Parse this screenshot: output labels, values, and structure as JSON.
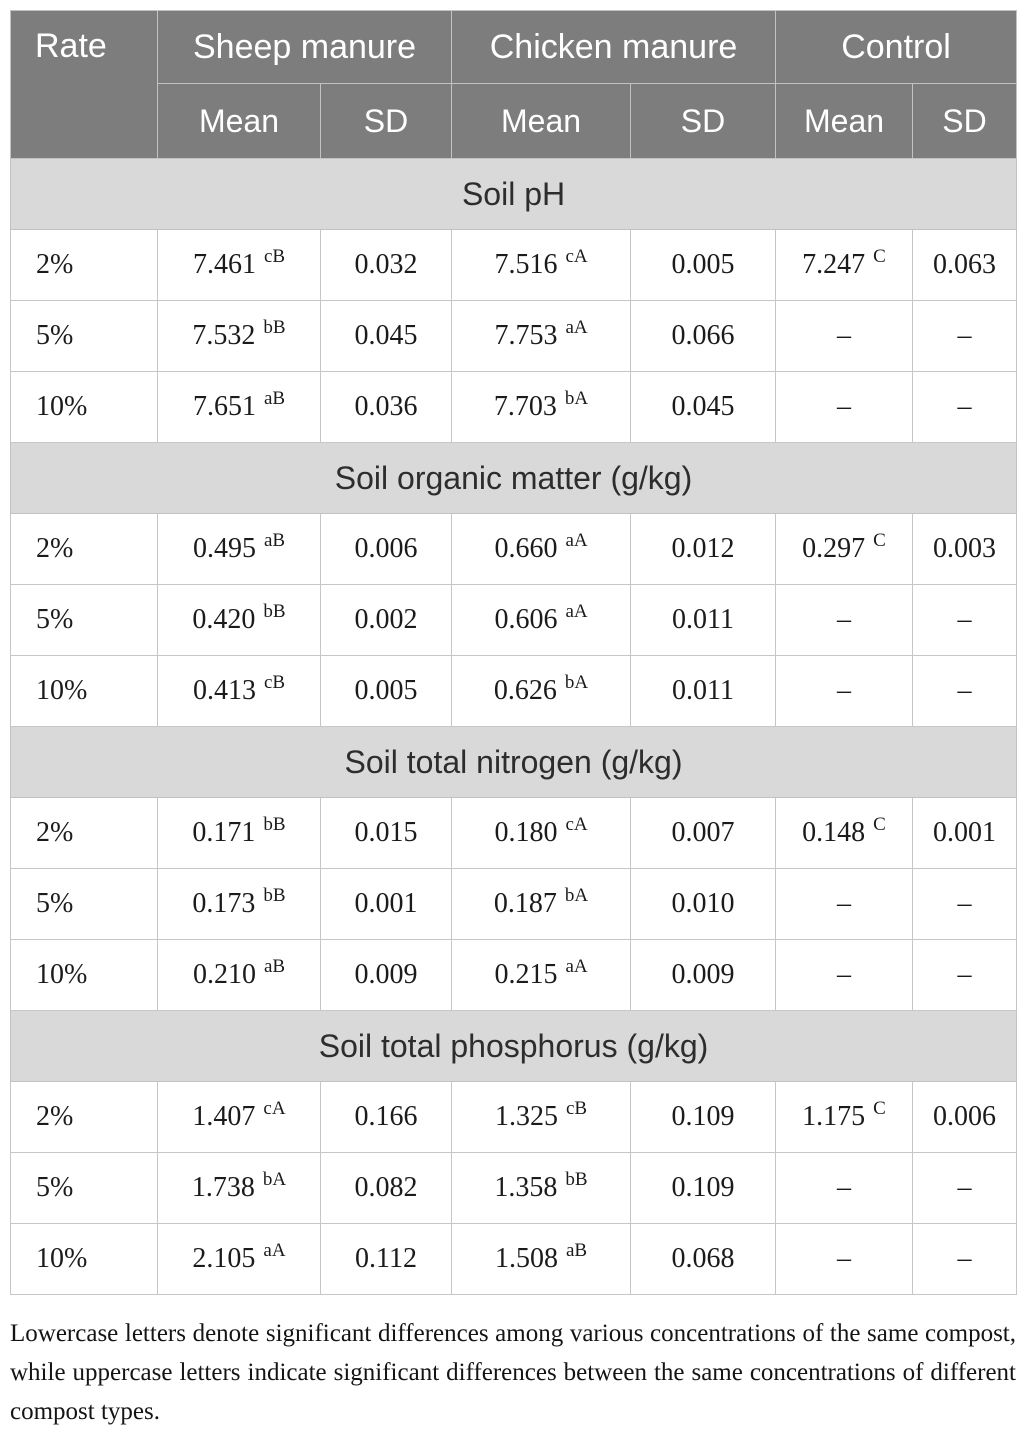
{
  "colors": {
    "header_background": "#7d7d7d",
    "header_text": "#ffffff",
    "section_band_background": "#d9d9d9",
    "cell_background": "#ffffff",
    "border": "#c6c6c6",
    "text": "#1b1b1b"
  },
  "table": {
    "header": {
      "rate": "Rate",
      "groups": [
        "Sheep manure",
        "Chicken manure",
        "Control"
      ],
      "mean": "Mean",
      "sd": "SD"
    },
    "sections": [
      {
        "title": "Soil pH",
        "rows": [
          {
            "rate": "2%",
            "sheep_mean": "7.461",
            "sheep_sup": "cB",
            "sheep_sd": "0.032",
            "chicken_mean": "7.516",
            "chicken_sup": "cA",
            "chicken_sd": "0.005",
            "control_mean": "7.247",
            "control_sup": "C",
            "control_sd": "0.063"
          },
          {
            "rate": "5%",
            "sheep_mean": "7.532",
            "sheep_sup": "bB",
            "sheep_sd": "0.045",
            "chicken_mean": "7.753",
            "chicken_sup": "aA",
            "chicken_sd": "0.066",
            "control_mean": "–",
            "control_sup": "",
            "control_sd": "–"
          },
          {
            "rate": "10%",
            "sheep_mean": "7.651",
            "sheep_sup": "aB",
            "sheep_sd": "0.036",
            "chicken_mean": "7.703",
            "chicken_sup": "bA",
            "chicken_sd": "0.045",
            "control_mean": "–",
            "control_sup": "",
            "control_sd": "–"
          }
        ]
      },
      {
        "title": "Soil organic matter (g/kg)",
        "rows": [
          {
            "rate": "2%",
            "sheep_mean": "0.495",
            "sheep_sup": "aB",
            "sheep_sd": "0.006",
            "chicken_mean": "0.660",
            "chicken_sup": "aA",
            "chicken_sd": "0.012",
            "control_mean": "0.297",
            "control_sup": "C",
            "control_sd": "0.003"
          },
          {
            "rate": "5%",
            "sheep_mean": "0.420",
            "sheep_sup": "bB",
            "sheep_sd": "0.002",
            "chicken_mean": "0.606",
            "chicken_sup": "aA",
            "chicken_sd": "0.011",
            "control_mean": "–",
            "control_sup": "",
            "control_sd": "–"
          },
          {
            "rate": "10%",
            "sheep_mean": "0.413",
            "sheep_sup": "cB",
            "sheep_sd": "0.005",
            "chicken_mean": "0.626",
            "chicken_sup": "bA",
            "chicken_sd": "0.011",
            "control_mean": "–",
            "control_sup": "",
            "control_sd": "–"
          }
        ]
      },
      {
        "title": "Soil total nitrogen (g/kg)",
        "rows": [
          {
            "rate": "2%",
            "sheep_mean": "0.171",
            "sheep_sup": "bB",
            "sheep_sd": "0.015",
            "chicken_mean": "0.180",
            "chicken_sup": "cA",
            "chicken_sd": "0.007",
            "control_mean": "0.148",
            "control_sup": "C",
            "control_sd": "0.001"
          },
          {
            "rate": "5%",
            "sheep_mean": "0.173",
            "sheep_sup": "bB",
            "sheep_sd": "0.001",
            "chicken_mean": "0.187",
            "chicken_sup": "bA",
            "chicken_sd": "0.010",
            "control_mean": "–",
            "control_sup": "",
            "control_sd": "–"
          },
          {
            "rate": "10%",
            "sheep_mean": "0.210",
            "sheep_sup": "aB",
            "sheep_sd": "0.009",
            "chicken_mean": "0.215",
            "chicken_sup": "aA",
            "chicken_sd": "0.009",
            "control_mean": "–",
            "control_sup": "",
            "control_sd": "–"
          }
        ]
      },
      {
        "title": "Soil total phosphorus (g/kg)",
        "rows": [
          {
            "rate": "2%",
            "sheep_mean": "1.407",
            "sheep_sup": "cA",
            "sheep_sd": "0.166",
            "chicken_mean": "1.325",
            "chicken_sup": "cB",
            "chicken_sd": "0.109",
            "control_mean": "1.175",
            "control_sup": "C",
            "control_sd": "0.006"
          },
          {
            "rate": "5%",
            "sheep_mean": "1.738",
            "sheep_sup": "bA",
            "sheep_sd": "0.082",
            "chicken_mean": "1.358",
            "chicken_sup": "bB",
            "chicken_sd": "0.109",
            "control_mean": "–",
            "control_sup": "",
            "control_sd": "–"
          },
          {
            "rate": "10%",
            "sheep_mean": "2.105",
            "sheep_sup": "aA",
            "sheep_sd": "0.112",
            "chicken_mean": "1.508",
            "chicken_sup": "aB",
            "chicken_sd": "0.068",
            "control_mean": "–",
            "control_sup": "",
            "control_sd": "–"
          }
        ]
      }
    ],
    "footnote": "Lowercase letters denote significant differences among various concentrations of the same compost, while uppercase letters indicate significant differences between the same concentrations of different compost types."
  }
}
